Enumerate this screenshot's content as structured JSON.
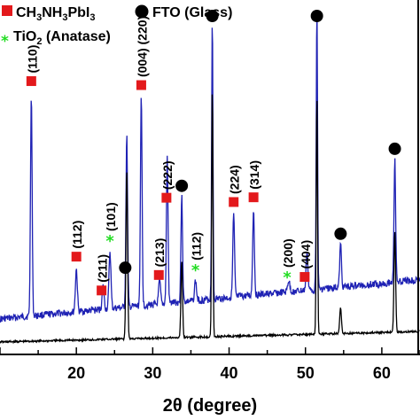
{
  "chart_data": {
    "type": "line",
    "xlabel": "2θ (degree)",
    "xlim": [
      10,
      65
    ],
    "x_ticks": [
      20,
      30,
      40,
      50,
      60
    ],
    "legend": [
      {
        "marker": "square",
        "color": "#e3191c",
        "label_base": "CH",
        "label_sub1": "3",
        "label_mid": "NH",
        "label_sub2": "3",
        "label_end": "PbI",
        "label_sub3": "3"
      },
      {
        "marker": "circle",
        "color": "#000000",
        "label": "FTO (Glass)"
      },
      {
        "marker": "star",
        "color": "#22dd22",
        "label_base": "TiO",
        "label_sub": "2",
        "label_end": " (Anatase)"
      }
    ],
    "series": [
      {
        "color": "#1f22b4",
        "baseline": 0.22,
        "peaks": [
          {
            "x": 14.1,
            "h": 0.78,
            "w": 0.15
          },
          {
            "x": 20.0,
            "h": 0.15,
            "w": 0.18
          },
          {
            "x": 23.5,
            "h": 0.08,
            "w": 0.18
          },
          {
            "x": 24.4,
            "h": 0.2,
            "w": 0.18
          },
          {
            "x": 26.6,
            "h": 0.6,
            "w": 0.15
          },
          {
            "x": 28.5,
            "h": 0.73,
            "w": 0.15
          },
          {
            "x": 30.9,
            "h": 0.08,
            "w": 0.18
          },
          {
            "x": 31.9,
            "h": 0.51,
            "w": 0.15
          },
          {
            "x": 33.8,
            "h": 0.37,
            "w": 0.15
          },
          {
            "x": 35.6,
            "h": 0.07,
            "w": 0.18
          },
          {
            "x": 37.8,
            "h": 0.99,
            "w": 0.12
          },
          {
            "x": 40.6,
            "h": 0.29,
            "w": 0.16
          },
          {
            "x": 43.2,
            "h": 0.3,
            "w": 0.16
          },
          {
            "x": 47.8,
            "h": 0.04,
            "w": 0.2
          },
          {
            "x": 50.2,
            "h": 0.14,
            "w": 0.16
          },
          {
            "x": 51.5,
            "h": 1.0,
            "w": 0.12
          },
          {
            "x": 54.6,
            "h": 0.15,
            "w": 0.16
          },
          {
            "x": 61.7,
            "h": 0.43,
            "w": 0.15
          }
        ]
      },
      {
        "color": "#000000",
        "baseline": 0.0,
        "peaks": [
          {
            "x": 26.6,
            "h": 0.53,
            "w": 0.15
          },
          {
            "x": 33.8,
            "h": 0.24,
            "w": 0.15
          },
          {
            "x": 37.8,
            "h": 0.78,
            "w": 0.12
          },
          {
            "x": 51.5,
            "h": 0.75,
            "w": 0.12
          },
          {
            "x": 54.6,
            "h": 0.08,
            "w": 0.16
          },
          {
            "x": 61.7,
            "h": 0.32,
            "w": 0.15
          }
        ]
      }
    ],
    "markers": [
      {
        "type": "square",
        "x": 14.1,
        "label": "(110)"
      },
      {
        "type": "square",
        "x": 20.0,
        "label": "(112)"
      },
      {
        "type": "square",
        "x": 23.3,
        "label": "(211)"
      },
      {
        "type": "star",
        "x": 24.4,
        "label": "(101)"
      },
      {
        "type": "circle",
        "x": 26.4,
        "label": ""
      },
      {
        "type": "square",
        "x": 28.5,
        "label": "(004) (220)"
      },
      {
        "type": "square",
        "x": 30.8,
        "label": "(213)"
      },
      {
        "type": "square",
        "x": 31.8,
        "label": "(222)"
      },
      {
        "type": "circle",
        "x": 33.8,
        "label": ""
      },
      {
        "type": "star",
        "x": 35.6,
        "label": "(112)"
      },
      {
        "type": "circle",
        "x": 37.8,
        "label": ""
      },
      {
        "type": "square",
        "x": 40.6,
        "label": "(224)"
      },
      {
        "type": "square",
        "x": 43.2,
        "label": "(314)"
      },
      {
        "type": "star",
        "x": 47.6,
        "label": "(200)"
      },
      {
        "type": "square",
        "x": 49.9,
        "label": "(404)"
      },
      {
        "type": "circle",
        "x": 51.5,
        "label": ""
      },
      {
        "type": "circle",
        "x": 54.6,
        "label": ""
      },
      {
        "type": "circle",
        "x": 61.7,
        "label": ""
      }
    ]
  }
}
